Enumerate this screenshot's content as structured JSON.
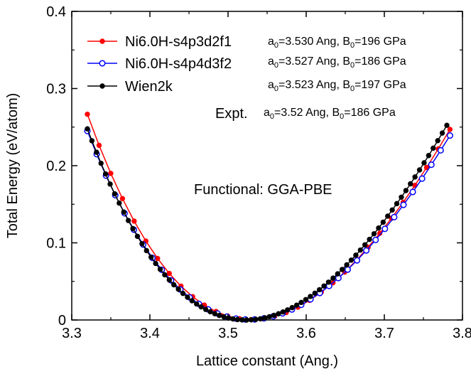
{
  "chart_data": {
    "type": "line",
    "title": "",
    "xlabel": "Lattice constant (Ang.)",
    "ylabel": "Total Energy (eV/atom)",
    "xlim": [
      3.3,
      3.8
    ],
    "ylim": [
      0,
      0.4
    ],
    "grid": false,
    "legend_position": "top-left",
    "x_ticks": [
      "3.3",
      "3.4",
      "3.5",
      "3.6",
      "3.7",
      "3.8"
    ],
    "y_ticks": [
      "0",
      "0.1",
      "0.2",
      "0.3",
      "0.4"
    ],
    "series": [
      {
        "name": "Ni6.0H-s4p3d2f1",
        "color": "#ff0000",
        "marker": "filled-circle",
        "a0": 3.53,
        "B0": 196,
        "emin": 0.0005,
        "a_start": 3.32,
        "a_end": 3.784,
        "n_points": 32,
        "params_text": [
          "a",
          "0",
          "=3.530 Ang, B",
          "0",
          "=196 GPa"
        ]
      },
      {
        "name": "Ni6.0H-s4p4d3f2",
        "color": "#0000ff",
        "marker": "open-circle",
        "a0": 3.527,
        "B0": 186,
        "emin": 0.0005,
        "a_start": 3.32,
        "a_end": 3.784,
        "n_points": 40,
        "params_text": [
          "a",
          "0",
          "=3.527 Ang, B",
          "0",
          "=186 GPa"
        ]
      },
      {
        "name": "Wien2k",
        "color": "#000000",
        "marker": "filled-circle",
        "a0": 3.523,
        "B0": 197,
        "emin": 0.0,
        "a_start": 3.32,
        "a_end": 3.78,
        "n_points": 80,
        "params_text": [
          "a",
          "0",
          "=3.523 Ang, B",
          "0",
          "=197 GPa"
        ]
      }
    ],
    "annotations": {
      "expt_label": "Expt.",
      "expt_params": [
        "a",
        "0",
        "=3.52  Ang, B",
        "0",
        "=186 GPa"
      ],
      "functional": "Functional: GGA-PBE"
    }
  }
}
